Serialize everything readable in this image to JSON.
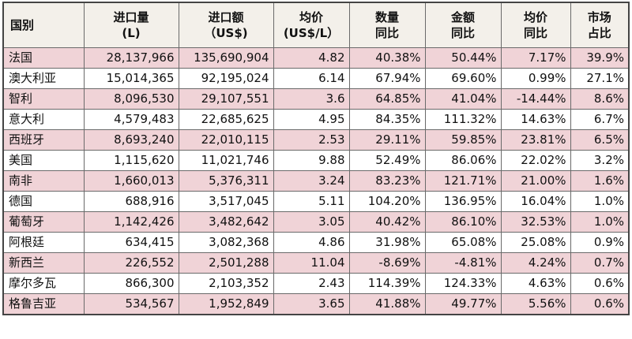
{
  "table": {
    "headers": [
      {
        "lines": [
          "国别"
        ]
      },
      {
        "lines": [
          "进口量",
          "(L)"
        ]
      },
      {
        "lines": [
          "进口额",
          "（US$)"
        ]
      },
      {
        "lines": [
          "均价",
          "(US$/L）"
        ]
      },
      {
        "lines": [
          "数量",
          "同比"
        ]
      },
      {
        "lines": [
          "金额",
          "同比"
        ]
      },
      {
        "lines": [
          "均价",
          "同比"
        ]
      },
      {
        "lines": [
          "市场",
          "占比"
        ]
      }
    ],
    "rows": [
      [
        "法国",
        "28,137,966",
        "135,690,904",
        "4.82",
        "40.38%",
        "50.44%",
        "7.17%",
        "39.9%"
      ],
      [
        "澳大利亚",
        "15,014,365",
        "92,195,024",
        "6.14",
        "67.94%",
        "69.60%",
        "0.99%",
        "27.1%"
      ],
      [
        "智利",
        "8,096,530",
        "29,107,551",
        "3.6",
        "64.85%",
        "41.04%",
        "-14.44%",
        "8.6%"
      ],
      [
        "意大利",
        "4,579,483",
        "22,685,625",
        "4.95",
        "84.35%",
        "111.32%",
        "14.63%",
        "6.7%"
      ],
      [
        "西班牙",
        "8,693,240",
        "22,010,115",
        "2.53",
        "29.11%",
        "59.85%",
        "23.81%",
        "6.5%"
      ],
      [
        "美国",
        "1,115,620",
        "11,021,746",
        "9.88",
        "52.49%",
        "86.06%",
        "22.02%",
        "3.2%"
      ],
      [
        "南非",
        "1,660,013",
        "5,376,311",
        "3.24",
        "83.23%",
        "121.71%",
        "21.00%",
        "1.6%"
      ],
      [
        "德国",
        "688,916",
        "3,517,045",
        "5.11",
        "104.20%",
        "136.95%",
        "16.04%",
        "1.0%"
      ],
      [
        "葡萄牙",
        "1,142,426",
        "3,482,642",
        "3.05",
        "40.42%",
        "86.10%",
        "32.53%",
        "1.0%"
      ],
      [
        "阿根廷",
        "634,415",
        "3,082,368",
        "4.86",
        "31.98%",
        "65.08%",
        "25.08%",
        "0.9%"
      ],
      [
        "新西兰",
        "226,552",
        "2,501,288",
        "11.04",
        "-8.69%",
        "-4.81%",
        "4.24%",
        "0.7%"
      ],
      [
        "摩尔多瓦",
        "866,300",
        "2,103,352",
        "2.43",
        "114.39%",
        "124.33%",
        "4.63%",
        "0.6%"
      ],
      [
        "格鲁吉亚",
        "534,567",
        "1,952,849",
        "3.65",
        "41.88%",
        "49.77%",
        "5.56%",
        "0.6%"
      ]
    ]
  },
  "colors": {
    "stripe": "#f0d3d7",
    "header_bg": "#f3f0ea",
    "border": "#6a6a6a"
  }
}
